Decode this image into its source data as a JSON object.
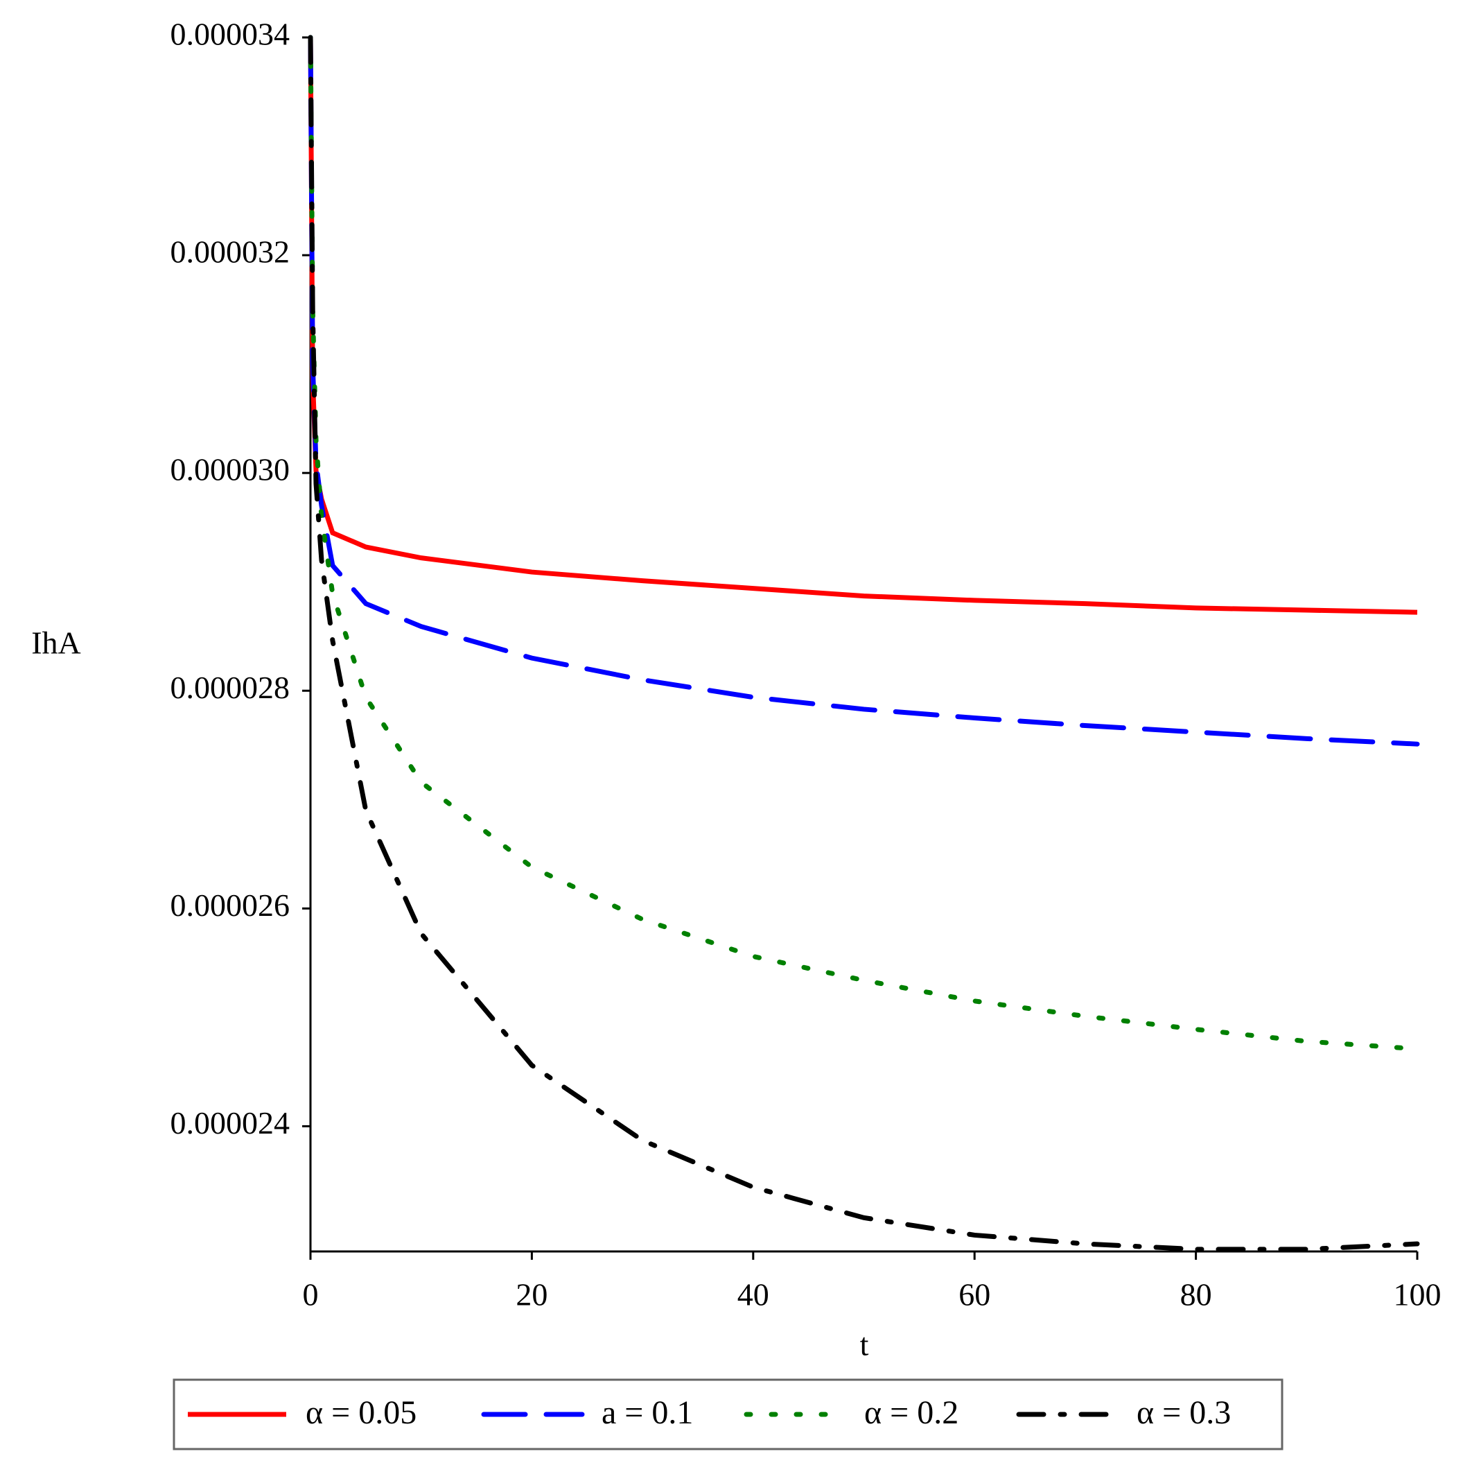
{
  "chart_data": {
    "type": "line",
    "x_label": "t",
    "y_label": "IhA",
    "x": [
      0,
      0.2,
      0.5,
      1,
      2,
      5,
      10,
      20,
      30,
      40,
      50,
      60,
      70,
      80,
      90,
      100
    ],
    "series": [
      {
        "name": "α = 0.05",
        "color": "#ff0000",
        "dash": "solid",
        "values": [
          3.4e-05,
          3.088e-05,
          3.002e-05,
          2.976e-05,
          2.945e-05,
          2.932e-05,
          2.922e-05,
          2.909e-05,
          2.901e-05,
          2.894e-05,
          2.887e-05,
          2.883e-05,
          2.88e-05,
          2.876e-05,
          2.874e-05,
          2.872e-05
        ]
      },
      {
        "name": "a = 0.1",
        "color": "#0000ff",
        "dash": "dash",
        "values": [
          3.4e-05,
          3.1e-05,
          3.01e-05,
          2.97e-05,
          2.915e-05,
          2.88e-05,
          2.859e-05,
          2.83e-05,
          2.81e-05,
          2.794e-05,
          2.783e-05,
          2.775e-05,
          2.768e-05,
          2.762e-05,
          2.756e-05,
          2.751e-05
        ]
      },
      {
        "name": "α = 0.2",
        "color": "#008000",
        "dash": "dot",
        "values": [
          3.4e-05,
          3.15e-05,
          3.03e-05,
          2.96e-05,
          2.889e-05,
          2.794e-05,
          2.716e-05,
          2.638e-05,
          2.59e-05,
          2.556e-05,
          2.534e-05,
          2.515e-05,
          2.501e-05,
          2.489e-05,
          2.478e-05,
          2.471e-05
        ]
      },
      {
        "name": "α = 0.3",
        "color": "#000000",
        "dash": "dashdot",
        "values": [
          3.4e-05,
          3.15e-05,
          2.99e-05,
          2.92e-05,
          2.846e-05,
          2.69e-05,
          2.577e-05,
          2.456e-05,
          2.387e-05,
          2.344e-05,
          2.316e-05,
          2.3e-05,
          2.292e-05,
          2.287e-05,
          2.287e-05,
          2.292e-05
        ]
      }
    ],
    "xlim": [
      0,
      100
    ],
    "xticks": [
      0,
      20,
      40,
      60,
      80,
      100
    ],
    "ylim": [
      2.285e-05,
      3.4e-05
    ],
    "yticks": [
      2.4e-05,
      2.6e-05,
      2.8e-05,
      {
        "value": 3e-05,
        "label": "0.000030"
      },
      3.2e-05,
      3.4e-05
    ],
    "legend": "bottom"
  }
}
